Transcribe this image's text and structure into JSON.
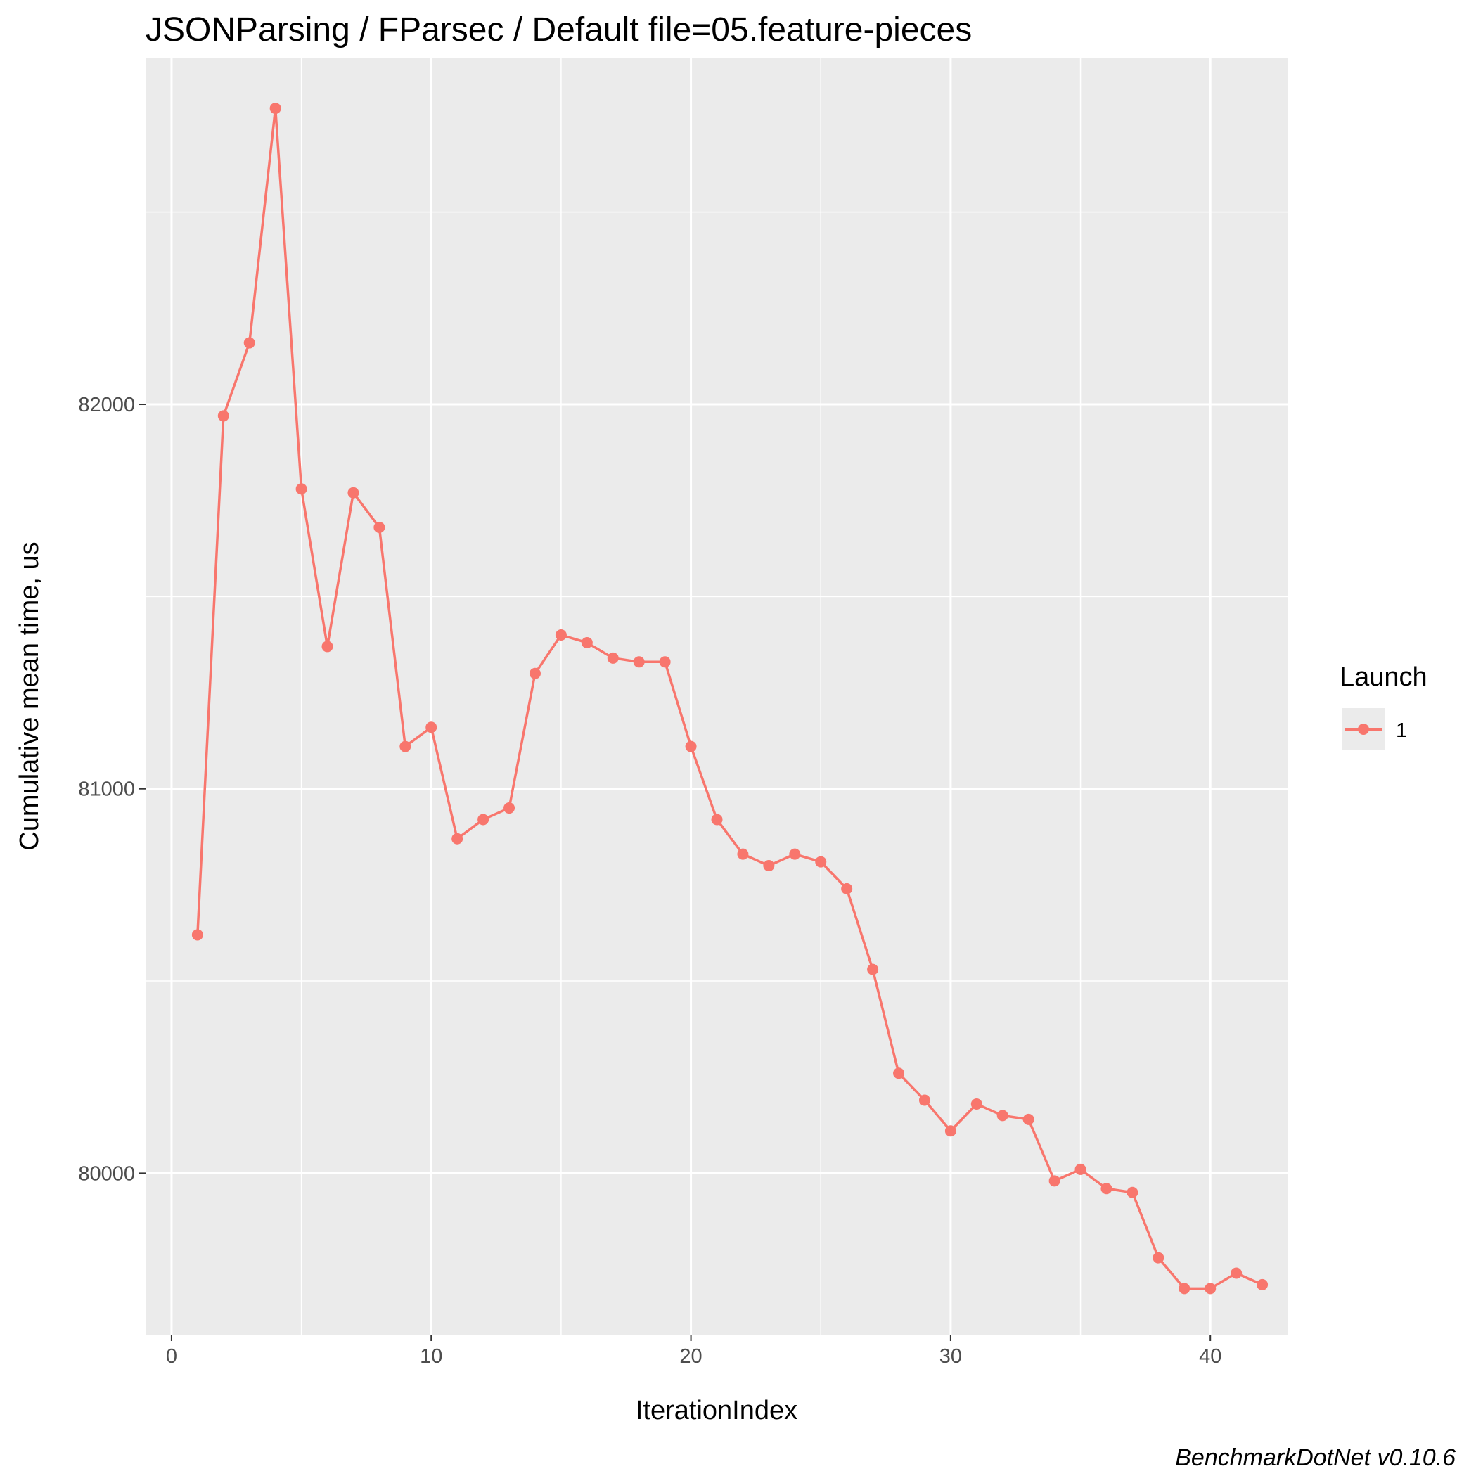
{
  "chart_data": {
    "type": "line",
    "title": "JSONParsing / FParsec / Default file=05.feature-pieces",
    "xlabel": "IterationIndex",
    "ylabel": "Cumulative mean time, us",
    "caption": "BenchmarkDotNet v0.10.6",
    "xlim": [
      -1.0,
      43.0
    ],
    "ylim": [
      79580,
      82900
    ],
    "x_ticks": [
      0,
      10,
      20,
      30,
      40
    ],
    "x_tick_labels": [
      "0",
      "10",
      "20",
      "30",
      "40"
    ],
    "y_ticks": [
      80000,
      81000,
      82000
    ],
    "y_tick_labels": [
      "80000",
      "81000",
      "82000"
    ],
    "grid": true,
    "legend": {
      "title": "Launch",
      "placement": "right"
    },
    "series": [
      {
        "name": "1",
        "color": "#F8766D",
        "x": [
          1,
          2,
          3,
          4,
          5,
          6,
          7,
          8,
          9,
          10,
          11,
          12,
          13,
          14,
          15,
          16,
          17,
          18,
          19,
          20,
          21,
          22,
          23,
          24,
          25,
          26,
          27,
          28,
          29,
          30,
          31,
          32,
          33,
          34,
          35,
          36,
          37,
          38,
          39,
          40,
          41,
          42
        ],
        "y": [
          80620,
          81970,
          82160,
          82770,
          81780,
          81370,
          81770,
          81680,
          81110,
          81160,
          80870,
          80920,
          80950,
          81300,
          81400,
          81380,
          81340,
          81330,
          81330,
          81110,
          80920,
          80830,
          80800,
          80830,
          80810,
          80740,
          80530,
          80260,
          80190,
          80110,
          80180,
          80150,
          80140,
          79980,
          80010,
          79960,
          79950,
          79780,
          79700,
          79700,
          79740,
          79710
        ]
      }
    ]
  }
}
